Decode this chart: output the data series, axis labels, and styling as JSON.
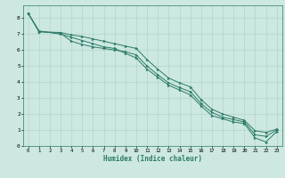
{
  "bg_color": "#cce8e0",
  "line_color": "#2d7a68",
  "grid_color": "#aacfc8",
  "xlabel": "Humidex (Indice chaleur)",
  "xlim": [
    -0.5,
    23.5
  ],
  "ylim": [
    0,
    8.8
  ],
  "xticks": [
    0,
    1,
    2,
    3,
    4,
    5,
    6,
    7,
    8,
    9,
    10,
    11,
    12,
    13,
    14,
    15,
    16,
    17,
    18,
    19,
    20,
    21,
    22,
    23
  ],
  "yticks": [
    0,
    1,
    2,
    3,
    4,
    5,
    6,
    7,
    8
  ],
  "series": [
    {
      "x": [
        0,
        1,
        3,
        4,
        5,
        6,
        7,
        8,
        9,
        10,
        11,
        12,
        13,
        14,
        15,
        16,
        17,
        18,
        19,
        20,
        21,
        22,
        23
      ],
      "y": [
        8.3,
        7.2,
        7.0,
        6.8,
        6.6,
        6.4,
        6.2,
        6.1,
        5.8,
        5.5,
        4.8,
        4.3,
        3.8,
        3.5,
        3.2,
        2.5,
        1.9,
        1.7,
        1.5,
        1.4,
        0.5,
        0.25,
        0.9
      ]
    },
    {
      "x": [
        0,
        1,
        3,
        4,
        5,
        6,
        7,
        8,
        9,
        10,
        11,
        12,
        13,
        14,
        15,
        16,
        17,
        18,
        19,
        20,
        21,
        22,
        23
      ],
      "y": [
        8.3,
        7.15,
        7.05,
        6.55,
        6.35,
        6.2,
        6.1,
        6.0,
        5.9,
        5.7,
        5.0,
        4.45,
        3.95,
        3.65,
        3.4,
        2.65,
        2.1,
        1.8,
        1.65,
        1.5,
        0.7,
        0.6,
        1.0
      ]
    },
    {
      "x": [
        0,
        1,
        3,
        4,
        5,
        6,
        7,
        8,
        9,
        10,
        11,
        12,
        13,
        14,
        15,
        16,
        17,
        18,
        19,
        20,
        21,
        22,
        23
      ],
      "y": [
        8.3,
        7.15,
        7.1,
        6.95,
        6.85,
        6.7,
        6.55,
        6.4,
        6.25,
        6.1,
        5.4,
        4.8,
        4.25,
        3.95,
        3.7,
        2.9,
        2.3,
        2.0,
        1.8,
        1.6,
        0.95,
        0.85,
        1.05
      ]
    }
  ]
}
